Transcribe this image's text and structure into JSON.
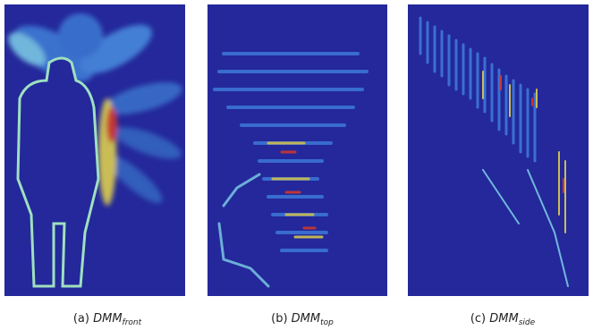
{
  "figure": {
    "panels": [
      {
        "label": "(a)",
        "name": "DMM",
        "subscript": "front"
      },
      {
        "label": "(b)",
        "name": "DMM",
        "subscript": "top"
      },
      {
        "label": "(c)",
        "name": "DMM",
        "subscript": "side"
      }
    ]
  }
}
